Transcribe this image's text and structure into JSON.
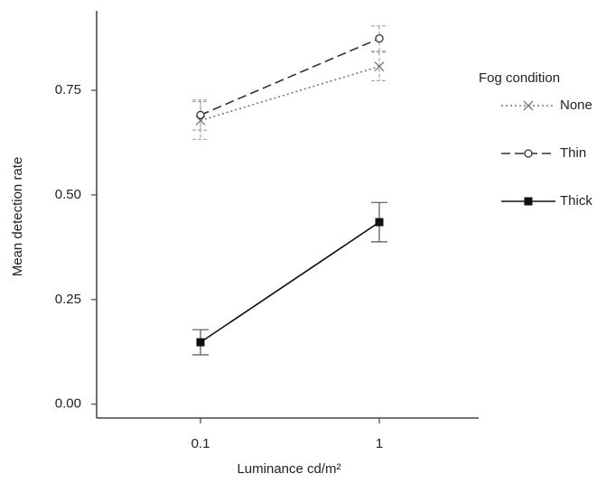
{
  "chart_data": {
    "type": "line",
    "x_label": "Luminance cd/m²",
    "y_label": "Mean detection rate",
    "categories": [
      "0.1",
      "1"
    ],
    "ylim": [
      -0.033,
      0.94
    ],
    "yticks": [
      {
        "value": 0,
        "label": "0.00"
      },
      {
        "value": 0.25,
        "label": "0.25"
      },
      {
        "value": 0.5,
        "label": "0.50"
      },
      {
        "value": 0.75,
        "label": "0.75"
      }
    ],
    "legend_title": "Fog condition",
    "legend_position": "right",
    "series": [
      {
        "name": "None",
        "color": "#777777",
        "dash": "dotted",
        "marker": "x",
        "values": [
          0.678,
          0.807
        ],
        "errors": [
          0.045,
          0.034
        ]
      },
      {
        "name": "Thin",
        "color": "#333333",
        "dash": "dashed",
        "marker": "circle",
        "values": [
          0.691,
          0.874
        ],
        "errors": [
          0.036,
          0.03
        ]
      },
      {
        "name": "Thick",
        "color": "#111111",
        "dash": "solid",
        "marker": "square",
        "values": [
          0.148,
          0.435
        ],
        "errors": [
          0.03,
          0.047
        ]
      }
    ]
  }
}
